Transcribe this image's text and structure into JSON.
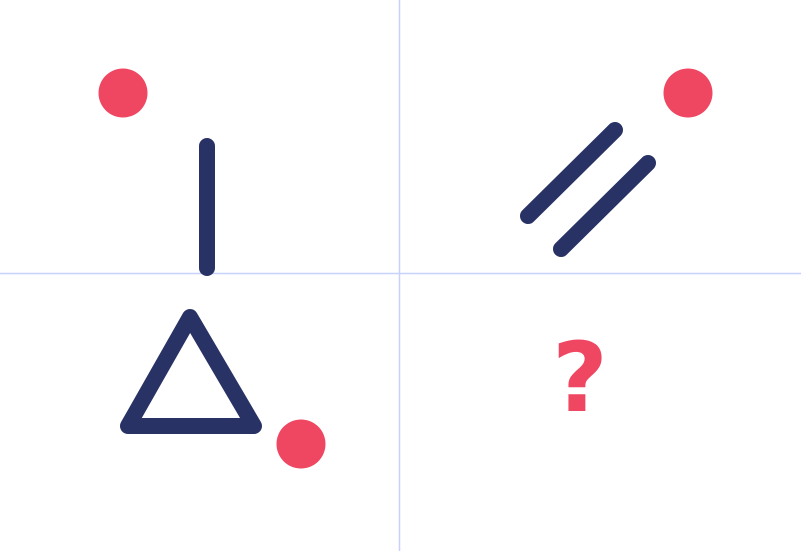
{
  "puzzle": {
    "unknown_cell_text": "?"
  },
  "colors": {
    "grid_line": "#c7d2fb",
    "shape_stroke": "#283264",
    "dot_fill": "#ef4661",
    "question_mark": "#ef4661",
    "background": "#ffffff"
  },
  "icons": {
    "top_left": "vertical-line-with-dot-icon",
    "top_right": "double-diagonal-lines-with-dot-icon",
    "bottom_left": "triangle-with-dot-icon",
    "bottom_right": "question-mark-icon"
  }
}
